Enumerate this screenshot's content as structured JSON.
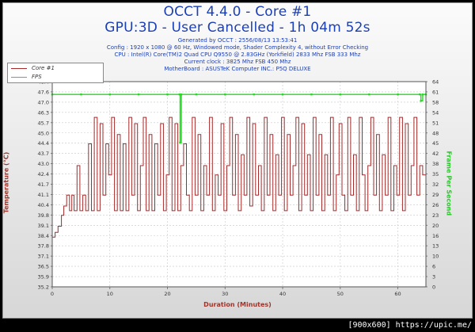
{
  "header": {
    "title_line1": "OCCT 4.4.0 - Core #1",
    "title_line2": "GPU:3D - User Cancelled - 1h 04m 52s",
    "generated": "Generated by OCCT : 2556/08/13 13:53:41",
    "config": "Config : 1920 x 1080 @ 60 Hz, Windowed mode, Shader Complexity 4, without Error Checking",
    "cpu": "CPU : Intel(R) Core(TM)2 Quad CPU Q9550 @ 2.83GHz (Yorkfield) 2833 Mhz FSB 333 Mhz",
    "clock": "Current clock : 3825 Mhz FSB 450 Mhz",
    "motherboard": "MotherBoard : ASUSTeK Computer INC.: P5Q DELUXE"
  },
  "legend": {
    "core_label": "Core #1",
    "fps_label": "FPS"
  },
  "footer": {
    "text": "[900x600] https://upic.me/"
  },
  "colors": {
    "temperature": "#a52a2a",
    "fps": "#22dd22",
    "title": "#1c3fb4",
    "axis_left": "#a0352b",
    "axis_right": "#22cc22"
  },
  "chart_data": {
    "type": "line",
    "xlabel": "Duration (Minutes)",
    "ylabel": "Temperature (°C)",
    "ylabel_right": "Frame Per Second",
    "xlim": [
      0,
      64.87
    ],
    "ylim": [
      35.2,
      48.4
    ],
    "ylim_right": [
      0,
      64
    ],
    "x_ticks": [
      "0",
      "10",
      "20",
      "30",
      "40",
      "50",
      "60"
    ],
    "y_ticks": [
      "35.2",
      "35.9",
      "36.5",
      "37.1",
      "37.8",
      "38.4",
      "39.1",
      "39.8",
      "40.4",
      "41.1",
      "41.7",
      "42.4",
      "43.0",
      "43.7",
      "44.4",
      "45.0",
      "45.7",
      "46.3",
      "47.0",
      "47.6",
      "48.4"
    ],
    "y_ticks_right": [
      "0",
      "3",
      "6",
      "10",
      "13",
      "16",
      "20",
      "23",
      "26",
      "29",
      "32",
      "35",
      "38",
      "42",
      "45",
      "48",
      "51",
      "54",
      "58",
      "61",
      "64"
    ],
    "grid": true,
    "series": [
      {
        "name": "Core #1",
        "x": [
          0,
          0.5,
          1,
          1.3,
          1.6,
          2,
          2.5,
          3,
          3.4,
          3.8,
          4.3,
          4.8,
          5.3,
          5.8,
          6.3,
          6.8,
          7.3,
          7.8,
          8.3,
          8.8,
          9.3,
          9.8,
          10.3,
          10.8,
          11.3,
          11.8,
          12.3,
          12.8,
          13.3,
          13.8,
          14.3,
          14.8,
          15.3,
          15.8,
          16.3,
          16.8,
          17.3,
          17.8,
          18.3,
          18.8,
          19.3,
          19.8,
          20.3,
          20.8,
          21.3,
          21.8,
          22.3,
          22.8,
          23.3,
          23.8,
          24.3,
          24.8,
          25.3,
          25.8,
          26.3,
          26.8,
          27.3,
          27.8,
          28.3,
          28.8,
          29.3,
          29.8,
          30.3,
          30.8,
          31.3,
          31.8,
          32.3,
          32.8,
          33.3,
          33.8,
          34.3,
          34.8,
          35.3,
          35.8,
          36.3,
          36.8,
          37.3,
          37.8,
          38.3,
          38.8,
          39.3,
          39.8,
          40.3,
          40.8,
          41.3,
          41.8,
          42.3,
          42.8,
          43.3,
          43.8,
          44.3,
          44.8,
          45.3,
          45.8,
          46.3,
          46.8,
          47.3,
          47.8,
          48.3,
          48.8,
          49.3,
          49.8,
          50.3,
          50.8,
          51.3,
          51.8,
          52.3,
          52.8,
          53.3,
          53.8,
          54.3,
          54.8,
          55.3,
          55.8,
          56.3,
          56.8,
          57.3,
          57.8,
          58.3,
          58.8,
          59.3,
          59.8,
          60.3,
          60.8,
          61.3,
          61.8,
          62.3,
          62.8,
          63.3,
          63.8,
          64.3,
          64.87
        ],
        "values": [
          38.4,
          38.7,
          39.1,
          39.1,
          39.8,
          40.4,
          41.1,
          40.1,
          41.1,
          40.1,
          43.0,
          40.1,
          41.1,
          40.1,
          44.4,
          40.1,
          46.1,
          40.1,
          45.7,
          41.1,
          44.4,
          42.4,
          46.1,
          40.1,
          45.0,
          40.1,
          44.4,
          40.1,
          46.1,
          41.1,
          45.7,
          40.1,
          43.0,
          46.1,
          40.1,
          45.0,
          40.1,
          44.4,
          41.1,
          45.7,
          40.1,
          42.4,
          46.1,
          40.1,
          45.7,
          40.1,
          43.0,
          44.4,
          41.1,
          40.1,
          46.1,
          41.1,
          45.0,
          40.1,
          43.0,
          41.1,
          46.1,
          40.1,
          42.4,
          41.1,
          45.7,
          40.1,
          43.0,
          46.1,
          41.1,
          45.0,
          40.1,
          43.7,
          41.1,
          46.1,
          40.4,
          45.7,
          41.1,
          43.0,
          40.1,
          46.1,
          41.1,
          45.0,
          40.1,
          43.7,
          41.1,
          46.1,
          40.1,
          45.0,
          41.1,
          43.0,
          46.1,
          40.1,
          45.7,
          41.1,
          43.7,
          40.1,
          46.1,
          41.1,
          45.0,
          40.1,
          43.7,
          41.1,
          46.1,
          40.1,
          42.4,
          45.7,
          41.1,
          40.1,
          46.1,
          41.1,
          43.7,
          40.1,
          46.1,
          42.4,
          40.1,
          43.0,
          46.1,
          41.1,
          45.0,
          40.1,
          43.7,
          41.1,
          46.1,
          40.1,
          43.0,
          41.1,
          46.1,
          40.1,
          45.7,
          41.1,
          43.0,
          46.1,
          41.1,
          43.0,
          42.4,
          43.0
        ],
        "axis": "left",
        "color": "#a52a2a"
      },
      {
        "name": "FPS",
        "x": [
          0,
          5,
          10,
          15,
          20,
          22.1,
          22.2,
          22.3,
          22.4,
          25,
          30,
          35,
          40,
          45,
          50,
          55,
          60,
          63.8,
          64,
          64.3,
          64.87
        ],
        "values": [
          60,
          60,
          60,
          60,
          60,
          60,
          45,
          45,
          60,
          60,
          60,
          60,
          60,
          60,
          60,
          60,
          60,
          60,
          58,
          60,
          60
        ],
        "axis": "right",
        "color": "#22dd22"
      }
    ]
  }
}
